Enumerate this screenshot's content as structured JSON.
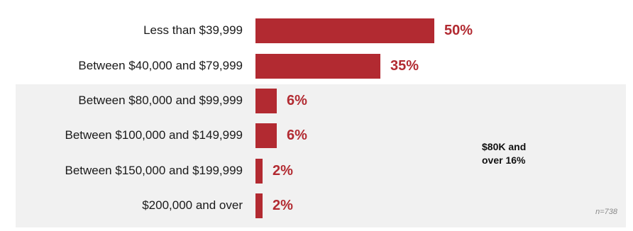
{
  "chart_data": {
    "type": "bar",
    "orientation": "horizontal",
    "categories": [
      "Less than $39,999",
      "Between $40,000 and $79,999",
      "Between $80,000 and $99,999",
      "Between $100,000 and $149,999",
      "Between $150,000 and $199,999",
      "$200,000 and over"
    ],
    "values": [
      50,
      35,
      6,
      6,
      2,
      2
    ],
    "value_labels": [
      "50%",
      "35%",
      "6%",
      "6%",
      "2%",
      "2%"
    ],
    "unit": "%",
    "xlim": [
      0,
      100
    ],
    "grid": false,
    "bar_color": "#b22a31",
    "highlight_panel_color": "#f1f1f1",
    "highlight_group": {
      "categories": [
        "Between $80,000 and $99,999",
        "Between $100,000 and $149,999",
        "Between $150,000 and $199,999",
        "$200,000 and over"
      ],
      "label": "$80K and\nover 16%"
    },
    "sample_size": "n=738"
  }
}
